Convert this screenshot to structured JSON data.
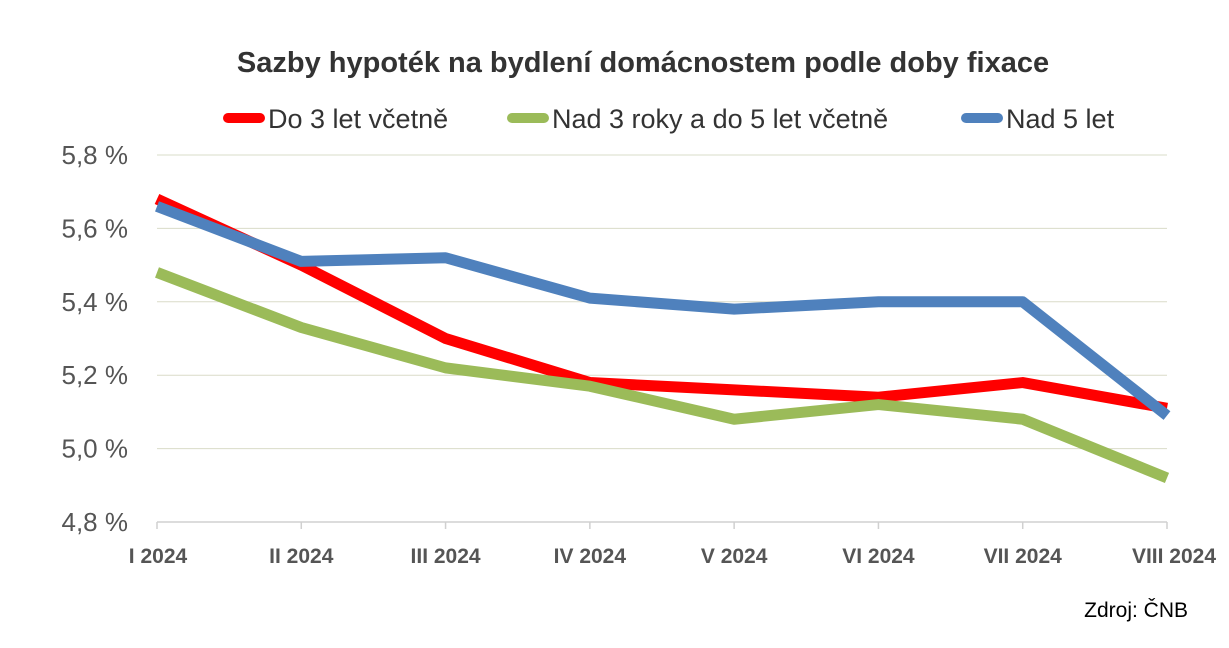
{
  "chart_data": {
    "type": "line",
    "title": "Sazby hypoték na bydlení domácnostem podle doby fixace",
    "categories": [
      "I 2024",
      "II 2024",
      "III 2024",
      "IV 2024",
      "V 2024",
      "VI 2024",
      "VII 2024",
      "VIII 2024"
    ],
    "series": [
      {
        "name": "Do 3 let včetně",
        "color": "#ff0000",
        "values": [
          5.68,
          5.5,
          5.3,
          5.18,
          5.16,
          5.14,
          5.18,
          5.11
        ]
      },
      {
        "name": "Nad 3 roky a do 5 let včetně",
        "color": "#9bbb59",
        "values": [
          5.48,
          5.33,
          5.22,
          5.17,
          5.08,
          5.12,
          5.08,
          4.92
        ]
      },
      {
        "name": "Nad 5 let",
        "color": "#4f81bd",
        "values": [
          5.66,
          5.51,
          5.52,
          5.41,
          5.38,
          5.4,
          5.4,
          5.09
        ]
      }
    ],
    "ylim": [
      4.8,
      5.8
    ],
    "yticks": [
      "4,8 %",
      "5,0 %",
      "5,2 %",
      "5,4 %",
      "5,6 %",
      "5,8 %"
    ],
    "xlabel": "",
    "ylabel": "",
    "grid": true,
    "legend_position": "top",
    "source": "Zdroj: ČNB"
  }
}
